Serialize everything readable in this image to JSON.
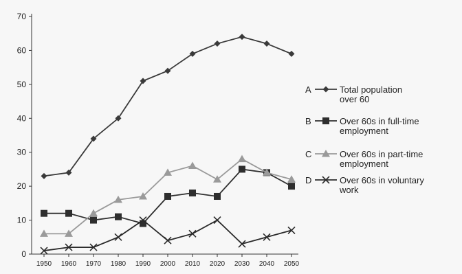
{
  "chart_data": {
    "type": "line",
    "x": [
      1950,
      1960,
      1970,
      1980,
      1990,
      2000,
      2010,
      2020,
      2030,
      2040,
      2050
    ],
    "ylim": [
      0,
      70
    ],
    "yticks": [
      0,
      10,
      20,
      30,
      40,
      50,
      60,
      70
    ],
    "grid": false,
    "legend_position": "right",
    "series": [
      {
        "letter": "A",
        "name": "Total population over 60",
        "name_lines": [
          "Total population",
          "over 60"
        ],
        "marker": "diamond",
        "color": "#3a3a3a",
        "values": [
          23,
          24,
          34,
          40,
          51,
          54,
          59,
          62,
          64,
          62,
          59
        ]
      },
      {
        "letter": "B",
        "name": "Over 60s in full-time employment",
        "name_lines": [
          "Over 60s in full-time",
          "employment"
        ],
        "marker": "square",
        "color": "#2e2e2e",
        "values": [
          12,
          12,
          10,
          11,
          9,
          17,
          18,
          17,
          25,
          24,
          20
        ]
      },
      {
        "letter": "C",
        "name": "Over 60s in part-time employment",
        "name_lines": [
          "Over 60s in part-time",
          "employment"
        ],
        "marker": "triangle",
        "color": "#9a9a9a",
        "values": [
          6,
          6,
          12,
          16,
          17,
          24,
          26,
          22,
          28,
          24,
          22
        ]
      },
      {
        "letter": "D",
        "name": "Over 60s in voluntary work",
        "name_lines": [
          "Over 60s in voluntary",
          "work"
        ],
        "marker": "cross",
        "color": "#2a2a2a",
        "values": [
          1,
          2,
          2,
          5,
          10,
          4,
          6,
          10,
          3,
          5,
          7
        ]
      }
    ]
  }
}
